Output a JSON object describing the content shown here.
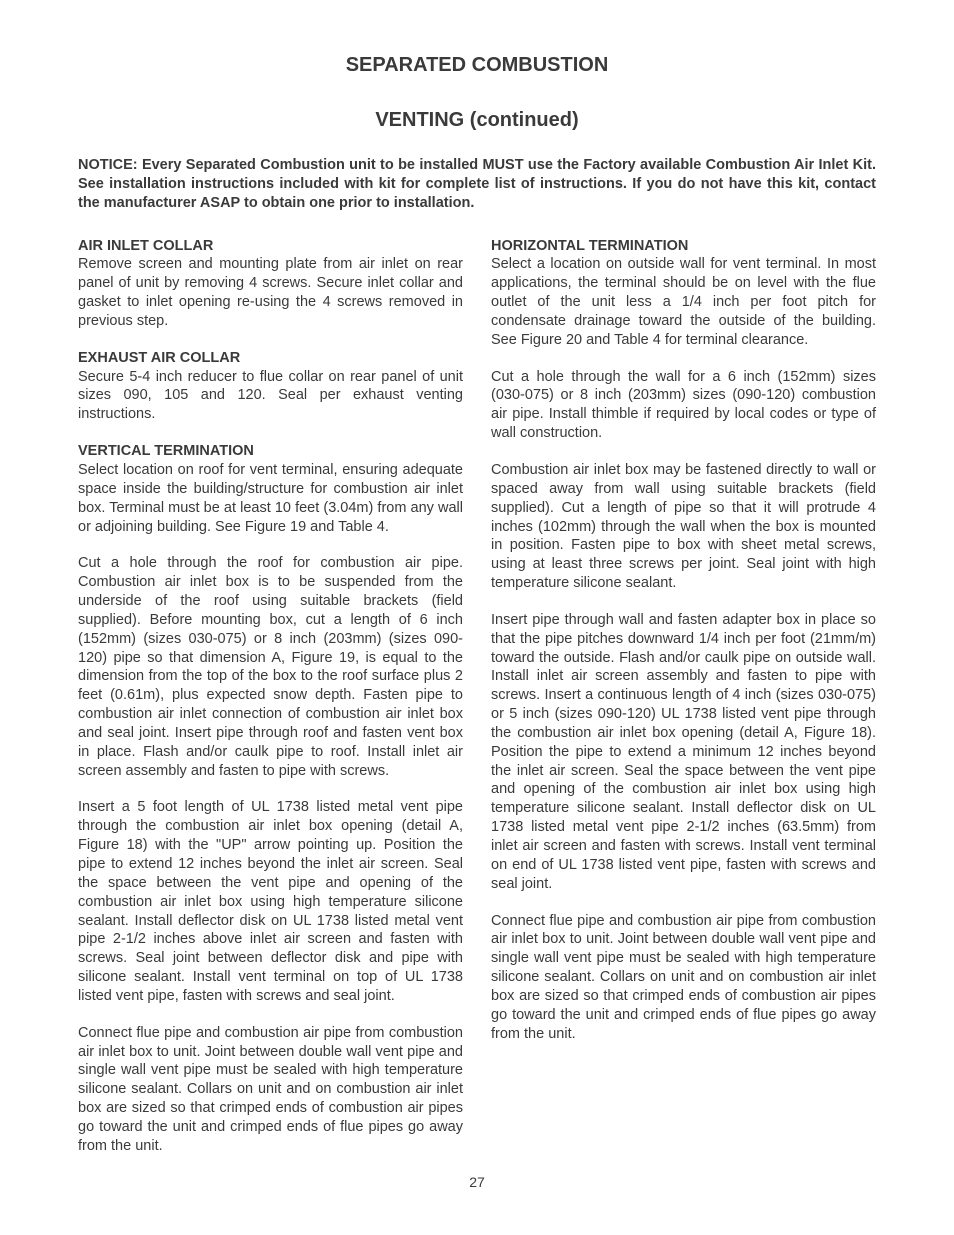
{
  "page": {
    "title1": "SEPARATED COMBUSTION",
    "title2": "VENTING (continued)",
    "notice": "NOTICE: Every Separated Combustion unit to be installed MUST use the Factory available Combustion Air Inlet Kit. See installation instructions included with kit for complete list of instructions. If you do not have this kit, contact the manufacturer ASAP to obtain one prior to installation.",
    "page_number": "27"
  },
  "left": {
    "h1": "AIR INLET COLLAR",
    "p1": "Remove screen and mounting plate from air inlet on rear panel of unit by removing 4 screws. Secure inlet collar and gasket to inlet opening re-using the 4 screws removed in previous step.",
    "h2": "EXHAUST AIR COLLAR",
    "p2": "Secure 5-4 inch reducer to flue collar on rear panel of unit sizes 090, 105 and 120. Seal per exhaust venting instructions.",
    "h3": "VERTICAL TERMINATION",
    "p3": "Select location on roof for vent terminal, ensuring adequate space inside the building/structure for combustion air inlet box. Terminal must be at least 10 feet (3.04m) from any wall or adjoining building. See Figure 19 and Table 4.",
    "p4": "Cut a hole through the roof for combustion air pipe. Combustion air inlet box is to be suspended from the underside of the roof using suitable brackets (field supplied). Before mounting box, cut a length of 6 inch (152mm) (sizes 030-075) or 8 inch (203mm) (sizes 090-120) pipe so that dimension A, Figure 19, is equal to the dimension from the top of the box to the roof surface plus 2 feet (0.61m), plus expected snow depth. Fasten pipe to combustion air inlet connection of combustion air inlet box and seal joint. Insert pipe through roof and fasten vent box in place. Flash and/or caulk pipe to roof. Install inlet air screen assembly and fasten to pipe with screws.",
    "p5": "Insert a 5 foot length of UL 1738 listed metal vent pipe through the combustion air inlet box opening (detail A, Figure 18) with the \"UP\" arrow pointing up. Position the pipe to extend 12 inches beyond the inlet air screen. Seal the space between the vent pipe and opening of the combustion air inlet box using high temperature silicone sealant. Install deflector disk on UL 1738 listed metal vent pipe 2-1/2 inches above inlet air screen and fasten with screws. Seal joint between deflector disk and pipe with silicone sealant. Install vent terminal on top of UL 1738 listed vent pipe, fasten with screws and seal joint.",
    "p6": "Connect flue pipe and combustion air pipe from combustion air inlet box to unit. Joint between double wall vent pipe and single wall vent pipe must be sealed with high temperature silicone sealant. Collars on unit and on combustion air inlet box are sized so that crimped ends of combustion air pipes go toward the unit and crimped ends of flue pipes go away from the unit."
  },
  "right": {
    "h1": "HORIZONTAL TERMINATION",
    "p1": "Select a location on outside wall for vent terminal. In most applications, the terminal should be on level with the flue outlet of the unit less a 1/4 inch per foot pitch for condensate drainage toward the outside of the building. See Figure 20 and Table 4 for terminal clearance.",
    "p2": "Cut a hole through the wall for a 6 inch (152mm) sizes (030-075) or 8 inch (203mm) sizes (090-120) combustion air pipe. Install thimble if required by local codes or type of wall construction.",
    "p3": "Combustion air inlet box may be fastened directly to wall or spaced away from wall using suitable brackets (field supplied). Cut a length of pipe so that it will protrude 4 inches (102mm) through the wall when the box is mounted in position. Fasten pipe to box with sheet metal screws, using at least three screws per joint. Seal joint with high temperature silicone sealant.",
    "p4": "Insert pipe through wall and fasten adapter box in place so that the pipe pitches downward 1/4 inch per foot (21mm/m) toward the outside. Flash and/or caulk pipe on outside wall. Install inlet air screen assembly and fasten to pipe with screws. Insert a continuous length of 4 inch (sizes 030-075) or 5 inch (sizes 090-120) UL 1738 listed vent pipe through the combustion air inlet box opening (detail A, Figure 18). Position the pipe to extend a minimum 12 inches beyond the inlet air screen. Seal the space between the vent pipe and opening of the combustion air inlet box using high temperature silicone sealant. Install deflector disk on UL 1738 listed metal vent pipe 2-1/2 inches (63.5mm) from inlet air screen and fasten with screws. Install vent terminal on end of UL 1738 listed vent pipe, fasten with screws and seal joint.",
    "p5": "Connect flue pipe and combustion air pipe from combustion air inlet box to unit. Joint between double wall vent pipe and single wall vent pipe must be sealed with high temperature silicone sealant. Collars on unit and on combustion air inlet box are sized so that crimped ends of combustion air pipes go toward the unit and crimped ends of flue pipes go away from the unit."
  }
}
